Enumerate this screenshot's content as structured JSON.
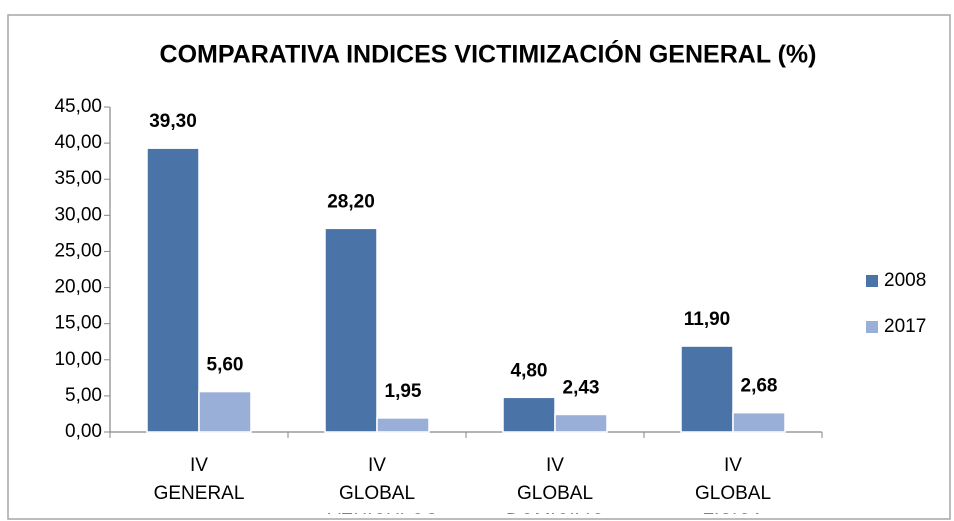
{
  "chart_data": {
    "type": "bar",
    "title": "COMPARATIVA INDICES VICTIMIZACIÓN GENERAL (%)",
    "categories": [
      "IV GENERAL",
      "IV GLOBAL VEHICULOS",
      "IV GLOBAL DOMICILIO",
      "IV GLOBAL FISICA"
    ],
    "series": [
      {
        "name": "2008",
        "color": "#4a73a8",
        "values": [
          39.3,
          28.2,
          4.8,
          11.9
        ],
        "value_labels": [
          "39,30",
          "28,20",
          "4,80",
          "11,90"
        ]
      },
      {
        "name": "2017",
        "color": "#9aafd7",
        "values": [
          5.6,
          1.95,
          2.43,
          2.68
        ],
        "value_labels": [
          "5,60",
          "1,95",
          "2,43",
          "2,68"
        ]
      }
    ],
    "ylim": [
      0,
      45
    ],
    "yticks": [
      {
        "value": 0,
        "label": "0,00"
      },
      {
        "value": 5,
        "label": "5,00"
      },
      {
        "value": 10,
        "label": "10,00"
      },
      {
        "value": 15,
        "label": "15,00"
      },
      {
        "value": 20,
        "label": "20,00"
      },
      {
        "value": 25,
        "label": "25,00"
      },
      {
        "value": 30,
        "label": "30,00"
      },
      {
        "value": 35,
        "label": "35,00"
      },
      {
        "value": 40,
        "label": "40,00"
      },
      {
        "value": 45,
        "label": "45,00"
      }
    ],
    "grid": false,
    "legend": "right"
  }
}
